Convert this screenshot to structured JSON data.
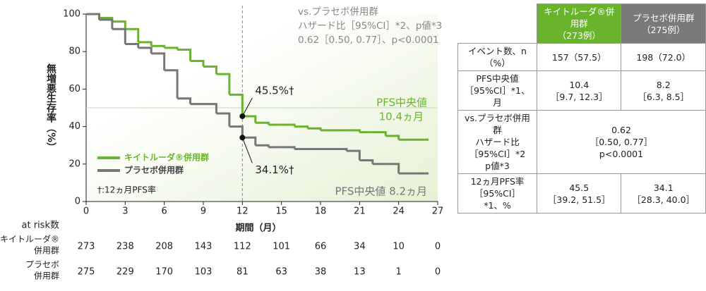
{
  "chart_data": {
    "type": "line",
    "step": true,
    "title_lines": [
      "vs.プラセボ併用群",
      "ハザード比［95%CI］*2、p値*3",
      "0.62［0.50, 0.77］、p<0.0001"
    ],
    "x_label": "期間（月）",
    "y_label": "無増悪生存率（%）",
    "xlim": [
      0,
      27
    ],
    "ylim": [
      0,
      100
    ],
    "xticks": [
      0,
      3,
      6,
      9,
      12,
      15,
      18,
      21,
      24,
      27
    ],
    "yticks": [
      0,
      20,
      40,
      60,
      80,
      100
    ],
    "reference_x": 12,
    "reference_y": 50,
    "x": [
      0,
      1,
      2,
      3,
      4,
      5,
      6,
      7,
      8,
      9,
      10,
      11,
      12,
      13,
      14,
      15,
      16,
      17,
      18,
      19,
      20,
      21,
      22,
      23,
      24,
      25,
      26
    ],
    "series": [
      {
        "name": "キイトルーダ®併用群",
        "color": "#6ab42d",
        "values": [
          100,
          98,
          96,
          92,
          85,
          83,
          82,
          81,
          75,
          72,
          68,
          57,
          45.5,
          42,
          41,
          41,
          40,
          39,
          38,
          38,
          38,
          37,
          37,
          35,
          33,
          33,
          33
        ]
      },
      {
        "name": "プラセボ併用群",
        "color": "#777777",
        "values": [
          100,
          97,
          92,
          84,
          82,
          79,
          70,
          55,
          52,
          52,
          47,
          40,
          34.1,
          30,
          29,
          29,
          28,
          28,
          28,
          28,
          27,
          22,
          20,
          20,
          15,
          15,
          15
        ]
      }
    ],
    "legend_note": "†:12ヵ月PFS率",
    "landmarks": [
      {
        "x": 12,
        "value": 45.5,
        "label": "45.5%†"
      },
      {
        "x": 12,
        "value": 34.1,
        "label": "34.1%†"
      }
    ],
    "median_labels": [
      [
        "PFS中央値",
        "10.4ヵ月"
      ],
      [
        "PFS中央値 8.2ヵ月"
      ]
    ],
    "at_risk": {
      "title": "at risk数",
      "groups": [
        {
          "name": [
            "キイトルーダ®",
            "併用群"
          ],
          "values": [
            273,
            238,
            208,
            143,
            112,
            101,
            66,
            34,
            10,
            0
          ]
        },
        {
          "name": [
            "プラセボ",
            "併用群"
          ],
          "values": [
            275,
            229,
            170,
            103,
            81,
            63,
            38,
            13,
            1,
            0
          ]
        }
      ]
    }
  },
  "table": {
    "header": [
      [
        "キイトルーダ®併用群",
        "（273例）"
      ],
      [
        "プラセボ併用群",
        "（275例）"
      ]
    ],
    "rows": [
      {
        "label": [
          "イベント数、n（%）"
        ],
        "cells": [
          [
            "157（57.5）"
          ],
          [
            "198（72.0）"
          ]
        ]
      },
      {
        "label": [
          "PFS中央値",
          "［95%CI］*1、月"
        ],
        "cells": [
          [
            "10.4",
            "［9.7, 12.3］"
          ],
          [
            "8.2",
            "［6.3, 8.5］"
          ]
        ]
      },
      {
        "label": [
          "vs.プラセボ併用群",
          "ハザード比",
          "［95%CI］*2",
          "p値*3"
        ],
        "cells": [
          [
            "0.62",
            "［0.50, 0.77］",
            "p<0.0001"
          ]
        ]
      },
      {
        "label": [
          "12ヵ月PFS率",
          "［95%CI］*1、%"
        ],
        "cells": [
          [
            "45.5",
            "［39.2, 51.5］"
          ],
          [
            "34.1",
            "［28.3, 40.0］"
          ]
        ]
      }
    ]
  }
}
